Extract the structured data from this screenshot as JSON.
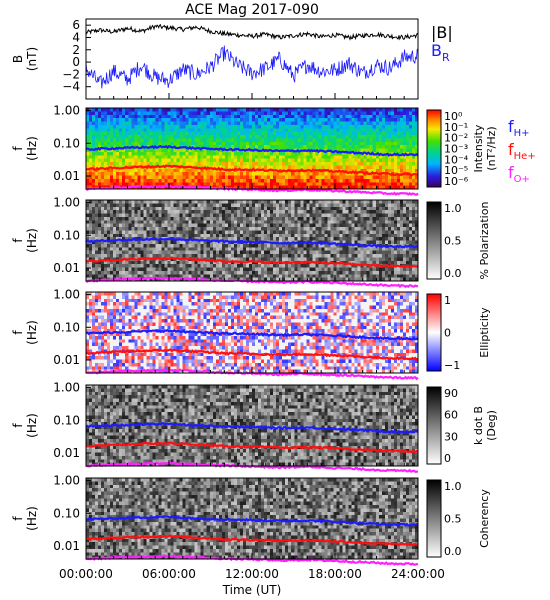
{
  "title": "ACE Mag 2017-090",
  "chart_data": [
    {
      "type": "line",
      "panel": "field",
      "ylabel_lines": [
        "B",
        "(nT)"
      ],
      "ylim": [
        -6,
        7
      ],
      "yticks": [
        6,
        4,
        2,
        0,
        -2,
        -4
      ],
      "x_range_hours": [
        0,
        24
      ],
      "series": [
        {
          "name": "|B|",
          "color": "#000000",
          "x": [
            0,
            1,
            2,
            3,
            4,
            5,
            6,
            7,
            8,
            9,
            10,
            11,
            12,
            13,
            14,
            15,
            16,
            17,
            18,
            19,
            20,
            21,
            22,
            23,
            24
          ],
          "values": [
            4.8,
            5.2,
            4.9,
            5.5,
            5.0,
            5.8,
            5.6,
            5.3,
            5.7,
            5.0,
            4.6,
            4.4,
            4.2,
            4.5,
            4.0,
            4.3,
            4.6,
            4.1,
            4.4,
            4.0,
            4.3,
            4.5,
            4.2,
            4.0,
            4.4
          ]
        },
        {
          "name": "B",
          "subscript": "R",
          "color": "#1c1cff",
          "x": [
            0,
            1,
            2,
            3,
            4,
            5,
            6,
            7,
            8,
            9,
            10,
            11,
            12,
            13,
            14,
            15,
            16,
            17,
            18,
            19,
            20,
            21,
            22,
            23,
            24
          ],
          "values": [
            -1.0,
            -3.6,
            -1.5,
            -2.8,
            -0.5,
            -2.5,
            -3.0,
            -1.2,
            -2.0,
            -0.8,
            1.5,
            -0.6,
            -1.8,
            -1.0,
            0.5,
            -2.2,
            -0.4,
            -1.5,
            -1.3,
            -0.2,
            -1.8,
            -0.5,
            -1.0,
            0.8,
            1.0
          ]
        }
      ]
    },
    {
      "type": "heatmap",
      "panel": "intensity",
      "ylabel_lines": [
        "f",
        "(Hz)"
      ],
      "ylim": [
        0.004,
        1.2
      ],
      "yscale": "log",
      "yticks": [
        "1.00",
        "0.10",
        "0.01"
      ],
      "colorbar": {
        "palette": "rainbow",
        "labels": [
          "10⁰",
          "10⁻¹",
          "10⁻²",
          "10⁻³",
          "10⁻⁴",
          "10⁻⁵",
          "10⁻⁶"
        ],
        "title_lines": [
          "Intensity",
          "(nT²/Hz)"
        ]
      },
      "legend": [
        {
          "name": "f",
          "subscript": "H+",
          "color": "#1c1cff"
        },
        {
          "name": "f",
          "subscript": "He+",
          "color": "#ff1010"
        },
        {
          "name": "f",
          "subscript": "O+",
          "color": "#ff20ff"
        }
      ]
    },
    {
      "type": "heatmap",
      "panel": "polarization",
      "ylabel_lines": [
        "f",
        "(Hz)"
      ],
      "ylim": [
        0.004,
        1.2
      ],
      "yscale": "log",
      "yticks": [
        "1.00",
        "0.10",
        "0.01"
      ],
      "colorbar": {
        "palette": "gray",
        "labels": [
          "1.0",
          "0.5",
          "0.0"
        ],
        "title_lines": [
          "% Polarization"
        ]
      }
    },
    {
      "type": "heatmap",
      "panel": "ellipticity",
      "ylabel_lines": [
        "f",
        "(Hz)"
      ],
      "ylim": [
        0.004,
        1.2
      ],
      "yscale": "log",
      "yticks": [
        "1.00",
        "0.10",
        "0.01"
      ],
      "colorbar": {
        "palette": "bwr",
        "labels": [
          "1",
          "0",
          "−1"
        ],
        "title_lines": [
          "Ellipticity"
        ]
      }
    },
    {
      "type": "heatmap",
      "panel": "kdotb",
      "ylabel_lines": [
        "f",
        "(Hz)"
      ],
      "ylim": [
        0.004,
        1.2
      ],
      "yscale": "log",
      "yticks": [
        "1.00",
        "0.10",
        "0.01"
      ],
      "colorbar": {
        "palette": "gray",
        "labels": [
          "90",
          "60",
          "30",
          "0"
        ],
        "title_lines": [
          "k dot B",
          "(Deg)"
        ]
      }
    },
    {
      "type": "heatmap",
      "panel": "coherency",
      "ylabel_lines": [
        "f",
        "(Hz)"
      ],
      "ylim": [
        0.004,
        1.2
      ],
      "yscale": "log",
      "yticks": [
        "1.00",
        "0.10",
        "0.01"
      ],
      "colorbar": {
        "palette": "gray",
        "labels": [
          "1.0",
          "0.5",
          "0.0"
        ],
        "title_lines": [
          "Coherency"
        ]
      }
    }
  ],
  "gyrofrequencies": {
    "x_hours": [
      0,
      2,
      4,
      6,
      8,
      10,
      12,
      14,
      16,
      18,
      20,
      22,
      24
    ],
    "H+": [
      0.065,
      0.07,
      0.075,
      0.078,
      0.07,
      0.065,
      0.062,
      0.058,
      0.06,
      0.055,
      0.05,
      0.045,
      0.045
    ],
    "He+": [
      0.016,
      0.0175,
      0.019,
      0.02,
      0.018,
      0.016,
      0.0155,
      0.0145,
      0.015,
      0.014,
      0.0125,
      0.0115,
      0.011
    ],
    "O+": [
      0.004,
      0.0044,
      0.0047,
      0.0049,
      0.0045,
      0.0041,
      0.0039,
      0.0036,
      0.0038,
      0.0035,
      0.0032,
      0.0029,
      0.0028
    ]
  },
  "xaxis": {
    "ticks": [
      "00:00:00",
      "06:00:00",
      "12:00:00",
      "18:00:00",
      "24:00:00"
    ],
    "label": "Time (UT)"
  }
}
